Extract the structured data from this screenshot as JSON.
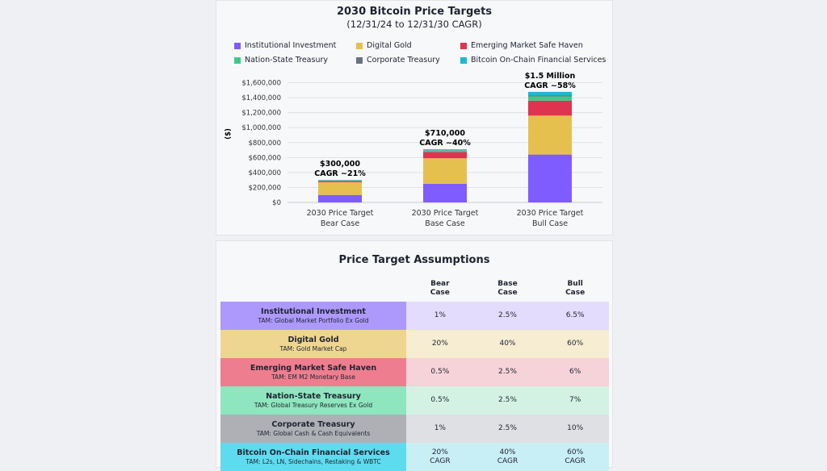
{
  "colors": {
    "institutional": "#7f5cff",
    "gold": "#e5c04f",
    "em": "#e0334f",
    "nation": "#3ec98c",
    "corporate": "#6b7280",
    "onchain": "#1fb8d0"
  },
  "chart_data": {
    "type": "bar",
    "stacked": true,
    "title": "2030 Bitcoin Price Targets",
    "subtitle": "(12/31/24 to 12/31/30 CAGR)",
    "ylabel": "($)",
    "xlabel": "",
    "ylim": [
      0,
      1600000
    ],
    "yticks": [
      "$0",
      "$200,000",
      "$400,000",
      "$600,000",
      "$800,000",
      "$1,000,000",
      "$1,200,000",
      "$1,400,000",
      "$1,600,000"
    ],
    "grid": true,
    "legend_position": "top",
    "categories": [
      [
        "2030 Price Target",
        "Bear Case"
      ],
      [
        "2030 Price Target",
        "Base Case"
      ],
      [
        "2030 Price Target",
        "Bull Case"
      ]
    ],
    "series": [
      {
        "name": "Institutional Investment",
        "color_key": "institutional",
        "values": [
          100000,
          250000,
          640000
        ]
      },
      {
        "name": "Digital Gold",
        "color_key": "gold",
        "values": [
          170000,
          340000,
          520000
        ]
      },
      {
        "name": "Emerging Market Safe Haven",
        "color_key": "em",
        "values": [
          15000,
          83000,
          200000
        ]
      },
      {
        "name": "Nation-State Treasury",
        "color_key": "nation",
        "values": [
          7000,
          20000,
          57000
        ]
      },
      {
        "name": "Corporate Treasury",
        "color_key": "corporate",
        "values": [
          3000,
          5000,
          15000
        ]
      },
      {
        "name": "Bitcoin On-Chain Financial Services",
        "color_key": "onchain",
        "values": [
          5000,
          12000,
          45000
        ]
      }
    ],
    "annotations": [
      [
        "$300,000",
        "CAGR ~21%"
      ],
      [
        "$710,000",
        "CAGR ~40%"
      ],
      [
        "$1.5 Million",
        "CAGR ~58%"
      ]
    ]
  },
  "table": {
    "title": "Price Target Assumptions",
    "headers": [
      [
        "Bear",
        "Case"
      ],
      [
        "Base",
        "Case"
      ],
      [
        "Bull",
        "Case"
      ]
    ],
    "rows": [
      {
        "name": "Institutional Investment",
        "tam": "TAM: Global Market Portfolio Ex Gold",
        "values": [
          [
            "1%"
          ],
          [
            "2.5%"
          ],
          [
            "6.5%"
          ]
        ],
        "bg": "#ad99fb",
        "light": "#e4dcfd"
      },
      {
        "name": "Digital Gold",
        "tam": "TAM: Gold Market Cap",
        "values": [
          [
            "20%"
          ],
          [
            "40%"
          ],
          [
            "60%"
          ]
        ],
        "bg": "#efd690",
        "light": "#f6edd2"
      },
      {
        "name": "Emerging Market Safe Haven",
        "tam": "TAM: EM M2 Monetary Base",
        "values": [
          [
            "0.5%"
          ],
          [
            "2.5%"
          ],
          [
            "6%"
          ]
        ],
        "bg": "#ee7e8f",
        "light": "#f6d3d9"
      },
      {
        "name": "Nation-State Treasury",
        "tam": "TAM: Global Treasury Reserves Ex Gold",
        "values": [
          [
            "0.5%"
          ],
          [
            "2.5%"
          ],
          [
            "7%"
          ]
        ],
        "bg": "#8ee6bf",
        "light": "#d4f2e4"
      },
      {
        "name": "Corporate Treasury",
        "tam": "TAM: Global Cash & Cash Equivalents",
        "values": [
          [
            "1%"
          ],
          [
            "2.5%"
          ],
          [
            "10%"
          ]
        ],
        "bg": "#aeb0b6",
        "light": "#dfe0e3"
      },
      {
        "name": "Bitcoin On-Chain Financial Services",
        "tam": "TAM: L2s, LN, Sidechains, Restaking & WBTC",
        "values": [
          [
            "20%",
            "CAGR"
          ],
          [
            "40%",
            "CAGR"
          ],
          [
            "60%",
            "CAGR"
          ]
        ],
        "bg": "#5edcef",
        "light": "#c9eff6"
      }
    ]
  }
}
